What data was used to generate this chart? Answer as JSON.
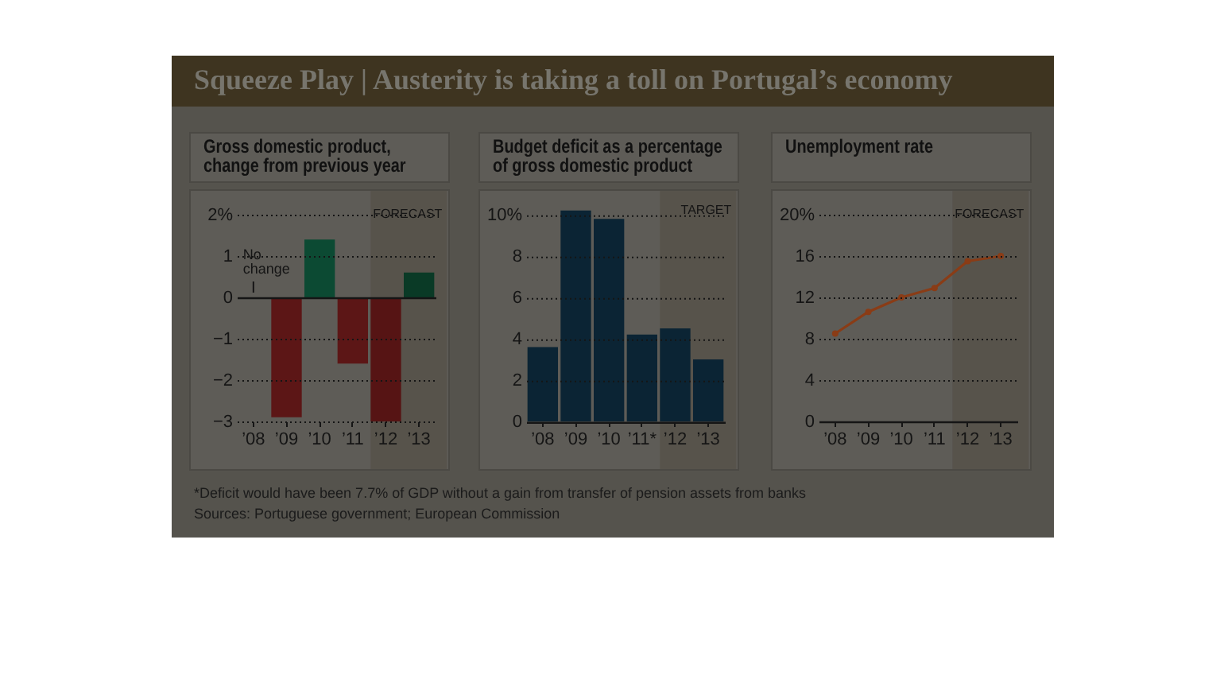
{
  "chart_data": [
    {
      "type": "other",
      "title": "Squeeze Play | Austerity is taking a toll on Portugal’s economy"
    },
    {
      "type": "bar",
      "title": "Gross domestic product, change from previous year",
      "categories": [
        "’08",
        "’09",
        "’10",
        "’11",
        "’12",
        "’13"
      ],
      "values": [
        0,
        -2.9,
        1.4,
        -1.6,
        -3.0,
        0.6
      ],
      "colors": [
        "#0c4a33",
        "#5c1616",
        "#0c4a33",
        "#5c1616",
        "#561414",
        "#0a3a26"
      ],
      "ylim": [
        -3,
        2
      ],
      "yticks": [
        -3,
        -2,
        -1,
        0,
        1,
        {
          "value": 2,
          "label": "2%"
        }
      ],
      "grid": "y",
      "bands": [
        {
          "axis": "x",
          "from": "’12",
          "to": "’13",
          "label": "FORECAST",
          "color": "#57534b"
        }
      ],
      "annotations": [
        {
          "text": "No change",
          "x": "’08",
          "y": 0
        }
      ]
    },
    {
      "type": "bar",
      "title": "Budget deficit as a percentage of gross domestic product",
      "categories": [
        "’08",
        "’09",
        "’10",
        "’11*",
        "’12",
        "’13"
      ],
      "values": [
        3.6,
        10.2,
        9.8,
        4.2,
        4.5,
        3.0
      ],
      "color": "#0b2434",
      "ylim": [
        0,
        10.2
      ],
      "yticks": [
        0,
        2,
        4,
        6,
        8,
        {
          "value": 10,
          "label": "10%"
        }
      ],
      "grid": "y",
      "bands": [
        {
          "axis": "x",
          "from": "’12",
          "to": "’13",
          "label": "TARGET",
          "color": "#57534b"
        }
      ]
    },
    {
      "type": "line",
      "title": "Unemployment rate",
      "categories": [
        "’08",
        "’09",
        "’10",
        "’11",
        "’12",
        "’13"
      ],
      "values": [
        8.5,
        10.6,
        12.0,
        12.9,
        15.5,
        16.0
      ],
      "color": "#8a3c16",
      "marker": "circle",
      "ylim": [
        0,
        20
      ],
      "yticks": [
        0,
        4,
        8,
        12,
        16,
        {
          "value": 20,
          "label": "20%"
        }
      ],
      "grid": "y",
      "bands": [
        {
          "axis": "x",
          "from": "’12",
          "to": "’13",
          "label": "FORECAST",
          "color": "#57534b"
        }
      ]
    },
    {
      "type": "other",
      "annotations": [
        "*Deficit would have been 7.7% of GDP without a gain from transfer of pension assets from banks",
        "Sources: Portuguese government; European Commission"
      ]
    }
  ]
}
